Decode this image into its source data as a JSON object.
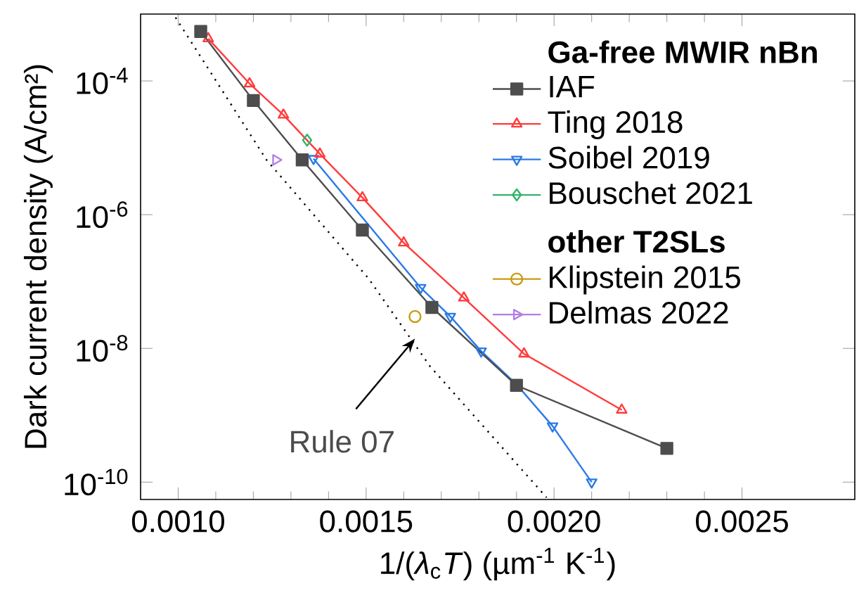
{
  "chart_data": {
    "type": "line",
    "xlabel": "1/(*λ*$_{c}$*T*) (µm$^{-1}$ K$^{-1}$)",
    "ylabel": "Dark current density (A/cm²)",
    "legend_title": "**Ga-free MWIR nBn**",
    "legend": "top right",
    "log": "y",
    "xlim": [
      0.0009,
      0.0028
    ],
    "ylim": [
      5.5e-11,
      0.001
    ],
    "xticks": [
      {
        "value": 0.001,
        "label": "0.0010"
      },
      {
        "value": 0.0015,
        "label": "0.0015"
      },
      {
        "value": 0.002,
        "label": "0.0020"
      },
      {
        "value": 0.0025,
        "label": "0.0025"
      }
    ],
    "yticks": [
      {
        "value": 1e-10,
        "label": "10$^{-10}$"
      },
      {
        "value": 1e-08,
        "label": "10$^{-8}$"
      },
      {
        "value": 1e-06,
        "label": "10$^{-6}$"
      },
      {
        "value": 0.0001,
        "label": "10$^{-4}$"
      }
    ],
    "series": [
      {
        "name": "IAF",
        "color": "#4d4d4d",
        "marker": "square",
        "x": [
          0.00106,
          0.0012,
          0.00133,
          0.00149,
          0.001675,
          0.0019,
          0.0023
        ],
        "values": [
          0.00055,
          5.1e-05,
          6.6e-06,
          5.9e-07,
          4.1e-08,
          2.8e-09,
          3.2e-10
        ]
      },
      {
        "name": "Ting 2018",
        "color": "#ff3b3b",
        "marker": "triangle",
        "x": [
          0.00108,
          0.00119,
          0.00128,
          0.001377,
          0.00149,
          0.0016,
          0.00176,
          0.00192,
          0.00218
        ],
        "values": [
          0.00043,
          9.1e-05,
          3.1e-05,
          8.1e-06,
          1.8e-06,
          3.8e-07,
          5.7e-08,
          8.3e-09,
          1.2e-09
        ]
      },
      {
        "name": "Soibel 2019",
        "color": "#2a7ae6",
        "marker": "triangle-down",
        "x": [
          0.00136,
          0.001645,
          0.001724,
          0.001806,
          0.0019,
          0.001996,
          0.0021
        ],
        "values": [
          6.9e-06,
          8.1e-08,
          3e-08,
          9.1e-09,
          2.9e-09,
          6.9e-10,
          1e-10
        ]
      },
      {
        "name": "Bouschet 2021",
        "color": "#35b36b",
        "marker": "diamond",
        "x": [
          0.001343
        ],
        "values": [
          1.3e-05
        ]
      },
      {
        "name": "Klipstein 2015",
        "color": "#c89b10",
        "marker": "circle",
        "x": [
          0.00163
        ],
        "values": [
          3e-08
        ]
      },
      {
        "name": "Delmas 2022",
        "color": "#b07ee8",
        "marker": "triangle-right",
        "x": [
          0.00126
        ],
        "values": [
          6.6e-06
        ]
      },
      {
        "color": "#000000",
        "marker": "none",
        "line_style": "dotted",
        "x": [
          0.000993,
          0.001235,
          0.001507,
          0.00167,
          0.00198
        ],
        "values": [
          0.00089,
          6.6e-06,
          1.1e-07,
          5.4e-09,
          5.9e-11
        ]
      }
    ],
    "annotations": [
      "**other T2SLs**",
      {
        "text": "Rule 07",
        "x": 0.00163,
        "y": 1.4e-08
      }
    ]
  }
}
